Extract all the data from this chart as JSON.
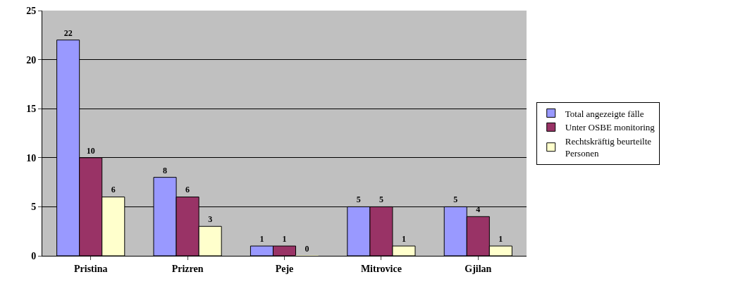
{
  "chart_data": {
    "type": "bar",
    "categories": [
      "Pristina",
      "Prizren",
      "Peje",
      "Mitrovice",
      "Gjilan"
    ],
    "series": [
      {
        "name": "Total angezeigte fälle",
        "color": "#9999ff",
        "values": [
          22,
          8,
          1,
          5,
          5
        ]
      },
      {
        "name": "Unter OSBE monitoring",
        "color": "#993366",
        "values": [
          10,
          6,
          1,
          5,
          4
        ]
      },
      {
        "name": "Rechtskräftig beurteilte Personen",
        "color": "#ffffcc",
        "values": [
          6,
          3,
          0,
          1,
          1
        ]
      }
    ],
    "ylim": [
      0,
      25
    ],
    "yticks": [
      0,
      5,
      10,
      15,
      20,
      25
    ],
    "grid": "y",
    "legend": "right",
    "data_labels": true
  }
}
